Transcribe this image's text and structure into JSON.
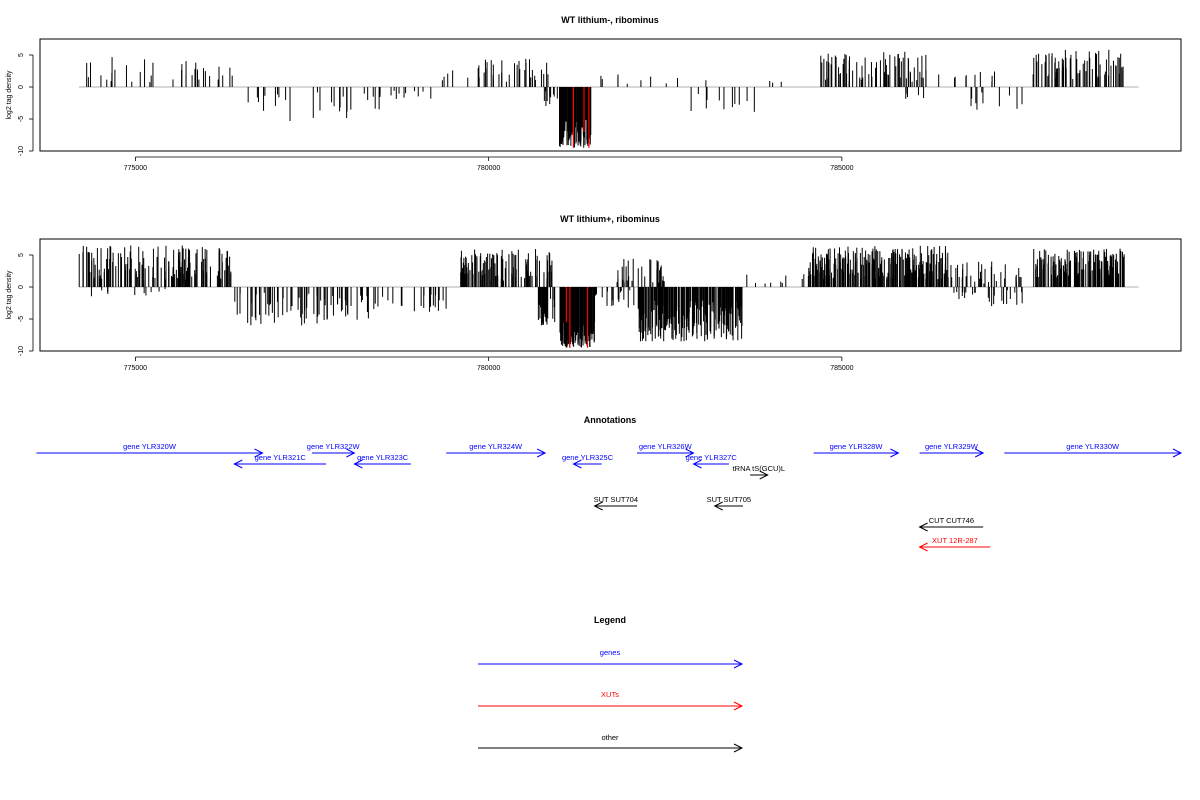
{
  "chart_data": [
    {
      "type": "bar",
      "title": "WT lithium-, ribominus",
      "ylabel": "log2 tag density",
      "xlabel": "",
      "xlim": [
        773650,
        789800
      ],
      "ylim": [
        -10,
        7.5
      ],
      "x_ticks": [
        775000,
        780000,
        785000
      ],
      "x_tick_labels": [
        "775000",
        "780000",
        "785000"
      ],
      "y_ticks": [
        -10,
        -5,
        0,
        5
      ],
      "y_tick_labels": [
        "-10",
        "-5",
        "0",
        "5"
      ],
      "grid": false,
      "colors": {
        "bars": "#000000",
        "highlight": "#ff0000",
        "baseline": "#999999"
      },
      "baseline_range": [
        774200,
        789200
      ],
      "regions": [
        {
          "from": 774200,
          "to": 775500,
          "sign": 1,
          "min": 0.6,
          "max": 5.0,
          "density": 0.012,
          "seed": 11
        },
        {
          "from": 775500,
          "to": 776400,
          "sign": 1,
          "min": 0.8,
          "max": 4.2,
          "density": 0.02,
          "seed": 12
        },
        {
          "from": 776500,
          "to": 778500,
          "sign": -1,
          "min": 0.8,
          "max": 5.5,
          "density": 0.014,
          "seed": 13
        },
        {
          "from": 778500,
          "to": 779300,
          "sign": -1,
          "min": 0.5,
          "max": 3.0,
          "density": 0.012,
          "seed": 14
        },
        {
          "from": 779300,
          "to": 779800,
          "sign": 1,
          "min": 0.5,
          "max": 3.0,
          "density": 0.01,
          "seed": 15
        },
        {
          "from": 779800,
          "to": 780900,
          "sign": 1,
          "min": 0.8,
          "max": 4.5,
          "density": 0.03,
          "seed": 16
        },
        {
          "from": 780750,
          "to": 781000,
          "sign": -1,
          "min": 0.5,
          "max": 3.5,
          "density": 0.04,
          "seed": 17
        },
        {
          "from": 781000,
          "to": 781450,
          "sign": -1,
          "min": 5.0,
          "max": 9.5,
          "density": 0.3,
          "seed": 18
        },
        {
          "from": 781500,
          "to": 783400,
          "sign": 1,
          "min": 0.5,
          "max": 2.0,
          "density": 0.005,
          "seed": 19
        },
        {
          "from": 782700,
          "to": 783800,
          "sign": -1,
          "min": 0.8,
          "max": 4.0,
          "density": 0.01,
          "seed": 20
        },
        {
          "from": 783800,
          "to": 784700,
          "sign": 1,
          "min": 0.5,
          "max": 1.5,
          "density": 0.003,
          "seed": 21
        },
        {
          "from": 784700,
          "to": 786200,
          "sign": 1,
          "min": 0.8,
          "max": 5.5,
          "density": 0.05,
          "seed": 22
        },
        {
          "from": 785800,
          "to": 786300,
          "sign": -1,
          "min": 0.5,
          "max": 2.0,
          "density": 0.01,
          "seed": 23
        },
        {
          "from": 786300,
          "to": 787500,
          "sign": 1,
          "min": 0.5,
          "max": 2.5,
          "density": 0.008,
          "seed": 24
        },
        {
          "from": 786800,
          "to": 787600,
          "sign": -1,
          "min": 0.8,
          "max": 4.0,
          "density": 0.012,
          "seed": 25
        },
        {
          "from": 787700,
          "to": 789000,
          "sign": 1,
          "min": 1.2,
          "max": 6.5,
          "density": 0.06,
          "seed": 26
        }
      ],
      "highlights": [
        {
          "x": 781200,
          "y": -9.5
        },
        {
          "x": 781420,
          "y": -9.5
        },
        {
          "x": 781350,
          "y": -7.0
        }
      ]
    },
    {
      "type": "bar",
      "title": "WT lithium+, ribominus",
      "ylabel": "log2 tag density",
      "xlabel": "",
      "xlim": [
        773650,
        789800
      ],
      "ylim": [
        -10,
        7.5
      ],
      "x_ticks": [
        775000,
        780000,
        785000
      ],
      "x_tick_labels": [
        "775000",
        "780000",
        "785000"
      ],
      "y_ticks": [
        -10,
        -5,
        0,
        5
      ],
      "y_tick_labels": [
        "-10",
        "-5",
        "0",
        "5"
      ],
      "grid": false,
      "colors": {
        "bars": "#000000",
        "highlight": "#ff0000",
        "baseline": "#999999"
      },
      "baseline_range": [
        774200,
        789200
      ],
      "regions": [
        {
          "from": 774200,
          "to": 775500,
          "sign": 1,
          "min": 0.8,
          "max": 6.5,
          "density": 0.06,
          "seed": 31
        },
        {
          "from": 774200,
          "to": 775500,
          "sign": -1,
          "min": 0.3,
          "max": 1.5,
          "density": 0.008,
          "seed": 32
        },
        {
          "from": 775500,
          "to": 776400,
          "sign": 1,
          "min": 1.0,
          "max": 6.5,
          "density": 0.08,
          "seed": 33
        },
        {
          "from": 776400,
          "to": 778300,
          "sign": -1,
          "min": 0.8,
          "max": 6.0,
          "density": 0.04,
          "seed": 34
        },
        {
          "from": 778300,
          "to": 779400,
          "sign": -1,
          "min": 0.5,
          "max": 4.0,
          "density": 0.02,
          "seed": 35
        },
        {
          "from": 779600,
          "to": 780900,
          "sign": 1,
          "min": 1.0,
          "max": 6.0,
          "density": 0.08,
          "seed": 36
        },
        {
          "from": 780700,
          "to": 781000,
          "sign": -1,
          "min": 1.5,
          "max": 6.0,
          "density": 0.1,
          "seed": 37
        },
        {
          "from": 781000,
          "to": 781500,
          "sign": -1,
          "min": 5.0,
          "max": 9.5,
          "density": 0.3,
          "seed": 38
        },
        {
          "from": 781500,
          "to": 782200,
          "sign": -1,
          "min": 0.5,
          "max": 3.5,
          "density": 0.03,
          "seed": 39
        },
        {
          "from": 781800,
          "to": 782500,
          "sign": 1,
          "min": 0.5,
          "max": 4.5,
          "density": 0.05,
          "seed": 40
        },
        {
          "from": 782100,
          "to": 783600,
          "sign": -1,
          "min": 2.0,
          "max": 8.5,
          "density": 0.15,
          "seed": 41
        },
        {
          "from": 783500,
          "to": 784600,
          "sign": 1,
          "min": 0.5,
          "max": 2.0,
          "density": 0.008,
          "seed": 42
        },
        {
          "from": 784500,
          "to": 786500,
          "sign": 1,
          "min": 1.0,
          "max": 6.5,
          "density": 0.12,
          "seed": 43
        },
        {
          "from": 786400,
          "to": 787600,
          "sign": 1,
          "min": 0.5,
          "max": 4.0,
          "density": 0.03,
          "seed": 44
        },
        {
          "from": 786400,
          "to": 787600,
          "sign": -1,
          "min": 0.5,
          "max": 3.0,
          "density": 0.02,
          "seed": 45
        },
        {
          "from": 787700,
          "to": 789000,
          "sign": 1,
          "min": 1.5,
          "max": 6.0,
          "density": 0.12,
          "seed": 46
        }
      ],
      "highlights": [
        {
          "x": 781150,
          "y": -9.5
        },
        {
          "x": 781400,
          "y": -9.5
        },
        {
          "x": 781100,
          "y": -5.5
        }
      ]
    }
  ],
  "annotations": {
    "title": "Annotations",
    "track_xlim": [
      773650,
      789800
    ],
    "items": [
      {
        "label": "gene YLR320W",
        "color": "#0000ff",
        "start": 773600,
        "end": 776800,
        "dir": "+",
        "row": 0
      },
      {
        "label": "gene YLR321C",
        "color": "#0000ff",
        "start": 776400,
        "end": 777700,
        "dir": "-",
        "row": 1
      },
      {
        "label": "gene YLR322W",
        "color": "#0000ff",
        "start": 777500,
        "end": 778100,
        "dir": "+",
        "row": 0
      },
      {
        "label": "gene YLR323C",
        "color": "#0000ff",
        "start": 778100,
        "end": 778900,
        "dir": "-",
        "row": 1
      },
      {
        "label": "gene YLR324W",
        "color": "#0000ff",
        "start": 779400,
        "end": 780800,
        "dir": "+",
        "row": 0
      },
      {
        "label": "gene YLR325C",
        "color": "#0000ff",
        "start": 781200,
        "end": 781600,
        "dir": "-",
        "row": 1
      },
      {
        "label": "gene YLR326W",
        "color": "#0000ff",
        "start": 782100,
        "end": 782900,
        "dir": "+",
        "row": 0
      },
      {
        "label": "gene YLR327C",
        "color": "#0000ff",
        "start": 782900,
        "end": 783400,
        "dir": "-",
        "row": 1
      },
      {
        "label": "tRNA tS(GCU)L",
        "color": "#000000",
        "start": 783700,
        "end": 783950,
        "dir": "+",
        "row": 2
      },
      {
        "label": "gene YLR328W",
        "color": "#0000ff",
        "start": 784600,
        "end": 785800,
        "dir": "+",
        "row": 0
      },
      {
        "label": "gene YLR329W",
        "color": "#0000ff",
        "start": 786100,
        "end": 787000,
        "dir": "+",
        "row": 0
      },
      {
        "label": "gene YLR330W",
        "color": "#0000ff",
        "start": 787300,
        "end": 789800,
        "dir": "+",
        "row": 0
      },
      {
        "label": "SUT SUT704",
        "color": "#000000",
        "start": 781500,
        "end": 782100,
        "dir": "-",
        "row": 3
      },
      {
        "label": "SUT SUT705",
        "color": "#000000",
        "start": 783200,
        "end": 783600,
        "dir": "-",
        "row": 3
      },
      {
        "label": "CUT CUT746",
        "color": "#000000",
        "start": 786100,
        "end": 787000,
        "dir": "-",
        "row": 4
      },
      {
        "label": "XUT 12R-287",
        "color": "#ff0000",
        "start": 786100,
        "end": 787100,
        "dir": "-",
        "row": 5
      }
    ]
  },
  "legend": {
    "title": "Legend",
    "items": [
      {
        "label": "genes",
        "color": "#0000ff"
      },
      {
        "label": "XUTs",
        "color": "#ff0000"
      },
      {
        "label": "other",
        "color": "#000000"
      }
    ]
  }
}
